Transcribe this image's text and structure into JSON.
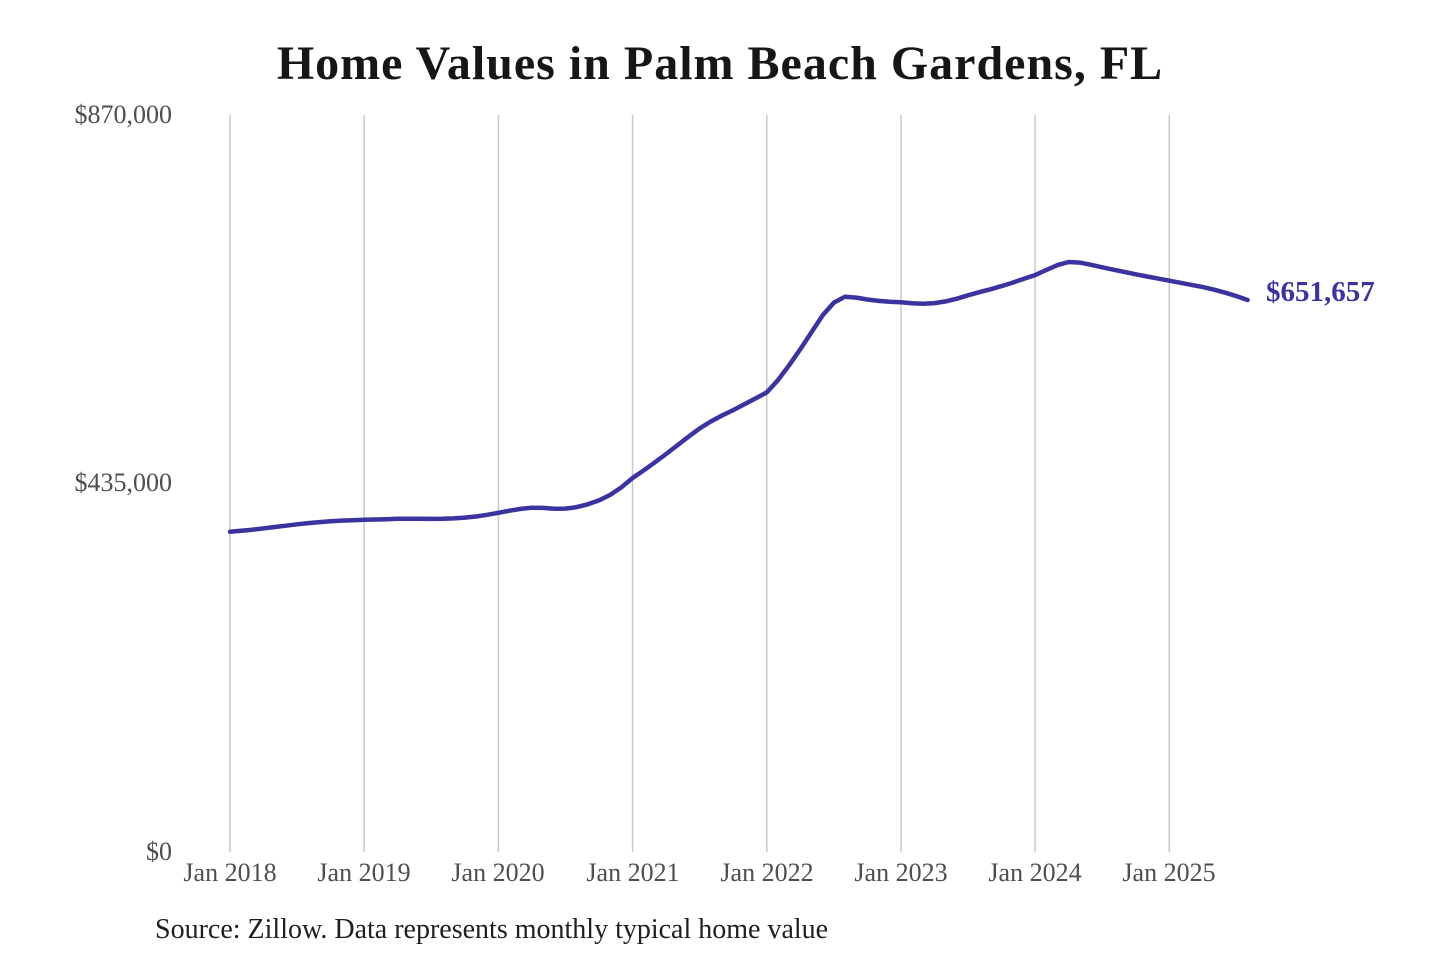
{
  "chart_data": {
    "type": "line",
    "title": "Home Values in Palm Beach Gardens, FL",
    "xlabel": "",
    "ylabel": "",
    "ylim": [
      0,
      870000
    ],
    "grid": "vertical-only",
    "grid_color": "#c9c9c9",
    "x_tick_labels": [
      "Jan 2018",
      "Jan 2019",
      "Jan 2020",
      "Jan 2021",
      "Jan 2022",
      "Jan 2023",
      "Jan 2024",
      "Jan 2025"
    ],
    "y_tick_labels": [
      "$870,000",
      "$435,000",
      "$0"
    ],
    "x_start": "2018-01",
    "x_end": "2025-08",
    "x_cadence": "monthly",
    "end_label": "$651,657",
    "last_value": 651657,
    "source_note": "Source: Zillow. Data represents monthly typical home value",
    "series": [
      {
        "name": "Typical home value",
        "color": "#3a33a0",
        "values": [
          378000,
          379200,
          380500,
          382000,
          383600,
          385200,
          386800,
          388200,
          389400,
          390400,
          391200,
          391700,
          392100,
          392500,
          392900,
          393300,
          393500,
          393400,
          393200,
          393300,
          393800,
          394700,
          396000,
          398000,
          400400,
          402900,
          405000,
          406400,
          406200,
          405300,
          405400,
          407200,
          410500,
          415000,
          421500,
          430500,
          441500,
          450600,
          460000,
          469800,
          480000,
          490300,
          500000,
          508200,
          515300,
          521700,
          528500,
          535500,
          542500,
          557000,
          574500,
          593500,
          613500,
          633500,
          648500,
          655500,
          654500,
          652200,
          650500,
          649500,
          649000,
          647800,
          647200,
          648000,
          650000,
          653200,
          657200,
          660800,
          664300,
          668000,
          672200,
          676600,
          681000,
          687000,
          692800,
          696500,
          695800,
          693200,
          690200,
          687400,
          684700,
          682000,
          679400,
          676900,
          674400,
          671900,
          669400,
          666800,
          663800,
          660200,
          656200,
          651657
        ]
      }
    ]
  }
}
